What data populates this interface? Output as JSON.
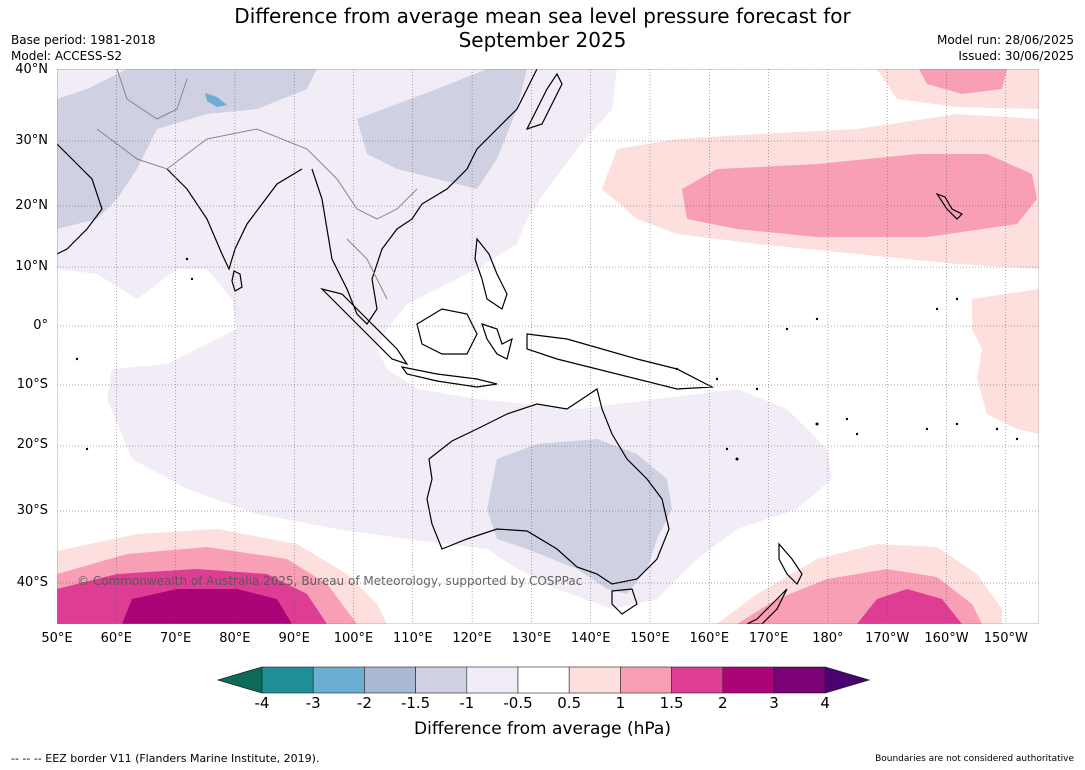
{
  "header": {
    "title_line1": "Difference from average mean sea level pressure forecast for",
    "title_line2": "September 2025",
    "base_period": "Base period: 1981-2018",
    "model": "Model: ACCESS-S2",
    "model_run": "Model run: 28/06/2025",
    "issued": "Issued: 30/06/2025"
  },
  "map": {
    "lat_labels": [
      "40°N",
      "30°N",
      "20°N",
      "10°N",
      "0°",
      "10°S",
      "20°S",
      "30°S",
      "40°S"
    ],
    "lon_labels": [
      "50°E",
      "60°E",
      "70°E",
      "80°E",
      "90°E",
      "100°E",
      "110°E",
      "120°E",
      "130°E",
      "140°E",
      "150°E",
      "160°E",
      "170°E",
      "180°",
      "170°W",
      "160°W",
      "150°W"
    ],
    "copyright": "© Commonwealth of Australia 2025, Bureau of Meteorology, supported by COSPPac"
  },
  "legend": {
    "title": "Difference from average (hPa)",
    "ticks": [
      "-4",
      "-3",
      "-2",
      "-1.5",
      "-1",
      "-0.5",
      "0.5",
      "1",
      "1.5",
      "2",
      "3",
      "4"
    ],
    "colors": [
      "#1e8f96",
      "#6aaed3",
      "#a9b9d4",
      "#cfd1e3",
      "#f1ecf5",
      "#ffffff",
      "#fde0de",
      "#f89fb6",
      "#de3d93",
      "#ad0379",
      "#7a0177"
    ],
    "extend_low_color": "#0d6b5a",
    "extend_high_color": "#4a0270"
  },
  "footer": {
    "eez_note": "--  --  -- EEZ border V11 (Flanders Marine Institute, 2019).",
    "disclaimer": "Boundaries are not considered authoritative"
  }
}
